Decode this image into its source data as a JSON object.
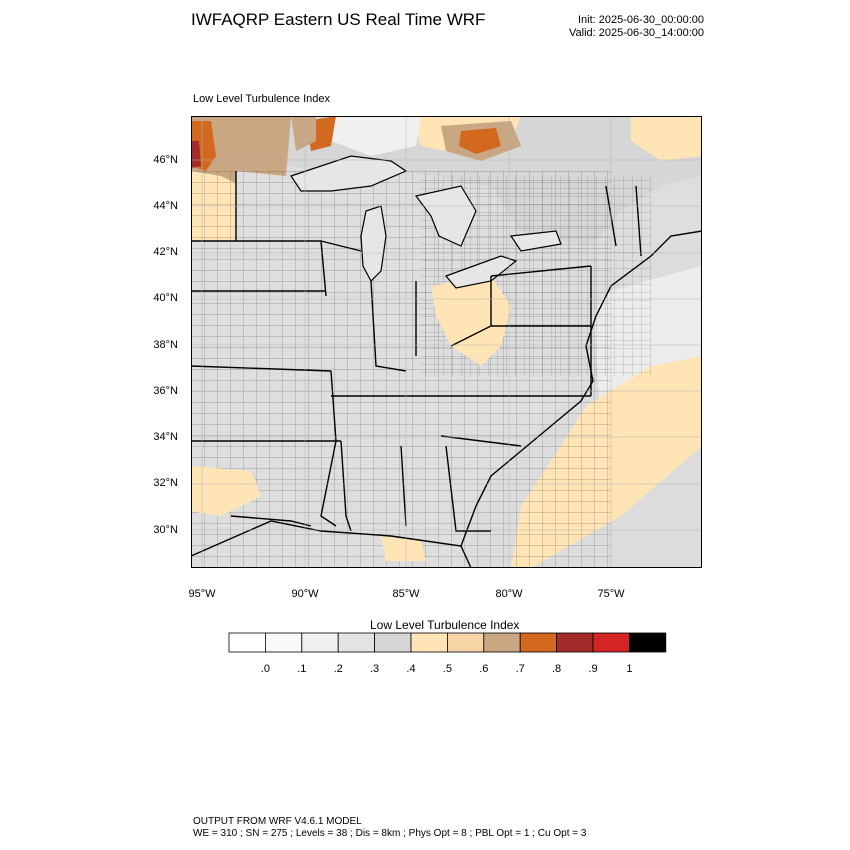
{
  "header": {
    "title": "IWFAQRP Eastern US Real Time WRF",
    "init": "Init: 2025-06-30_00:00:00",
    "valid": "Valid: 2025-06-30_14:00:00"
  },
  "map": {
    "field_title": "Low Level Turbulence Index",
    "lat_labels": [
      "46°N",
      "44°N",
      "42°N",
      "40°N",
      "38°N",
      "36°N",
      "34°N",
      "32°N",
      "30°N"
    ],
    "lon_labels": [
      "95°W",
      "90°W",
      "85°W",
      "80°W",
      "75°W"
    ],
    "colors": {
      "land_bg": "#dcdcdc",
      "water_light": "#e6e6e6",
      "ocean_far": "#d8d8d8",
      "peach": "#ffe4b5",
      "tan": "#c8a782",
      "orange": "#d2691e"
    }
  },
  "colorbar": {
    "title": "Low Level Turbulence Index",
    "labels": [
      ".0",
      ".1",
      ".2",
      ".3",
      ".4",
      ".5",
      ".6",
      ".7",
      ".8",
      ".9",
      "1"
    ],
    "colors": [
      "#ffffff",
      "#f9f9f9",
      "#f0f0f0",
      "#e3e3e3",
      "#d6d6d6",
      "#ffe4b5",
      "#f5d4a6",
      "#c8a782",
      "#d2691e",
      "#a52a2a",
      "#d42525",
      "#000000"
    ]
  },
  "footer": {
    "line1": "OUTPUT FROM WRF V4.6.1 MODEL",
    "line2": "WE = 310 ; SN = 275 ; Levels = 38 ; Dis = 8km ; Phys Opt = 8 ; PBL Opt = 1 ; Cu Opt = 3"
  }
}
